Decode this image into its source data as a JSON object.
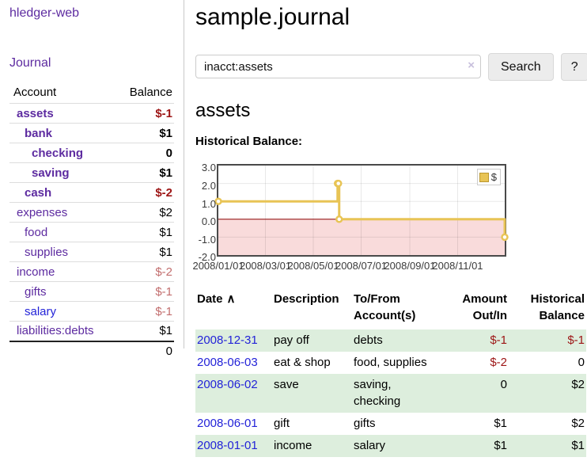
{
  "colors": {
    "purple": "#5d2ba0",
    "blue": "#2323d8",
    "neg_strong": "#9d1515",
    "neg_soft": "#c26e6e",
    "row_green": "#ddeedd",
    "gold": "#e8c455",
    "pink_negative_region": "#f9dbdb",
    "zero_line": "#8b0000",
    "divider": "#c9c9c9"
  },
  "app": {
    "brand": "hledger-web",
    "nav": {
      "journal": "Journal"
    }
  },
  "sidebar": {
    "headers": {
      "account": "Account",
      "balance": "Balance"
    },
    "accounts": [
      {
        "name": "assets",
        "balance": "$-1",
        "indent": 1,
        "bold": true,
        "name_color": "purple",
        "balance_tone": "neg-strong"
      },
      {
        "name": "bank",
        "balance": "$1",
        "indent": 2,
        "bold": true,
        "name_color": "purple",
        "balance_tone": "normal"
      },
      {
        "name": "checking",
        "balance": "0",
        "indent": 3,
        "bold": true,
        "name_color": "purple",
        "balance_tone": "normal"
      },
      {
        "name": "saving",
        "balance": "$1",
        "indent": 3,
        "bold": true,
        "name_color": "purple",
        "balance_tone": "normal"
      },
      {
        "name": "cash",
        "balance": "$-2",
        "indent": 2,
        "bold": true,
        "name_color": "purple",
        "balance_tone": "neg-strong"
      },
      {
        "name": "expenses",
        "balance": "$2",
        "indent": 1,
        "bold": false,
        "name_color": "purple",
        "balance_tone": "normal"
      },
      {
        "name": "food",
        "balance": "$1",
        "indent": 2,
        "bold": false,
        "name_color": "purple",
        "balance_tone": "normal"
      },
      {
        "name": "supplies",
        "balance": "$1",
        "indent": 2,
        "bold": false,
        "name_color": "purple",
        "balance_tone": "normal"
      },
      {
        "name": "income",
        "balance": "$-2",
        "indent": 1,
        "bold": false,
        "name_color": "purple",
        "balance_tone": "neg-soft"
      },
      {
        "name": "gifts",
        "balance": "$-1",
        "indent": 2,
        "bold": false,
        "name_color": "purple",
        "balance_tone": "neg-soft"
      },
      {
        "name": "salary",
        "balance": "$-1",
        "indent": 2,
        "bold": false,
        "name_color": "blue",
        "balance_tone": "neg-soft"
      },
      {
        "name": "liabilities:debts",
        "balance": "$1",
        "indent": 1,
        "bold": false,
        "name_color": "purple",
        "balance_tone": "normal"
      }
    ],
    "total": "0"
  },
  "main": {
    "title": "sample.journal",
    "search": {
      "query": "inacct:assets",
      "clear_icon": "×",
      "search_label": "Search",
      "help_label": "?"
    },
    "account_heading": "assets",
    "chart_heading": "Historical Balance:"
  },
  "chart_data": {
    "type": "line",
    "style": "step",
    "title": "Historical Balance:",
    "legend": [
      {
        "label": "$",
        "color": "#e8c455"
      }
    ],
    "legend_position": "top-right",
    "x_start": "2008-01-01",
    "x_end": "2008-12-31",
    "series": [
      {
        "name": "$",
        "points": [
          {
            "date": "2008-01-01",
            "value": 1
          },
          {
            "date": "2008-06-01",
            "value": 2
          },
          {
            "date": "2008-06-02",
            "value": 2
          },
          {
            "date": "2008-06-03",
            "value": 0
          },
          {
            "date": "2008-12-31",
            "value": -1
          }
        ]
      }
    ],
    "ylim": [
      -2,
      3
    ],
    "yticks": [
      "3.0",
      "2.0",
      "1.0",
      "0.0",
      "-1.0",
      "-2.0"
    ],
    "ytick_values": [
      3,
      2,
      1,
      0,
      -1,
      -2
    ],
    "xticks": [
      "2008/01/01",
      "2008/03/01",
      "2008/05/01",
      "2008/07/01",
      "2008/09/01",
      "2008/11/01"
    ],
    "xtick_dates": [
      "2008-01-01",
      "2008-03-01",
      "2008-05-01",
      "2008-07-01",
      "2008-09-01",
      "2008-11-01"
    ],
    "grid": true,
    "negative_region_shaded": true
  },
  "register": {
    "headers": [
      "Date",
      "Description",
      "To/From Account(s)",
      "Amount Out/In",
      "Historical Balance"
    ],
    "sort_caret": "∧",
    "rows": [
      {
        "date": "2008-12-31",
        "description": "pay off",
        "accounts": "debts",
        "amount": "$-1",
        "amount_tone": "neg-strong",
        "balance": "$-1",
        "balance_tone": "neg-strong",
        "shaded": true
      },
      {
        "date": "2008-06-03",
        "description": "eat & shop",
        "accounts": "food, supplies",
        "amount": "$-2",
        "amount_tone": "neg-strong",
        "balance": "0",
        "balance_tone": "normal",
        "shaded": false
      },
      {
        "date": "2008-06-02",
        "description": "save",
        "accounts": "saving, checking",
        "amount": "0",
        "amount_tone": "normal",
        "balance": "$2",
        "balance_tone": "normal",
        "shaded": true
      },
      {
        "date": "2008-06-01",
        "description": "gift",
        "accounts": "gifts",
        "amount": "$1",
        "amount_tone": "normal",
        "balance": "$2",
        "balance_tone": "normal",
        "shaded": false
      },
      {
        "date": "2008-01-01",
        "description": "income",
        "accounts": "salary",
        "amount": "$1",
        "amount_tone": "normal",
        "balance": "$1",
        "balance_tone": "normal",
        "shaded": true
      }
    ]
  }
}
